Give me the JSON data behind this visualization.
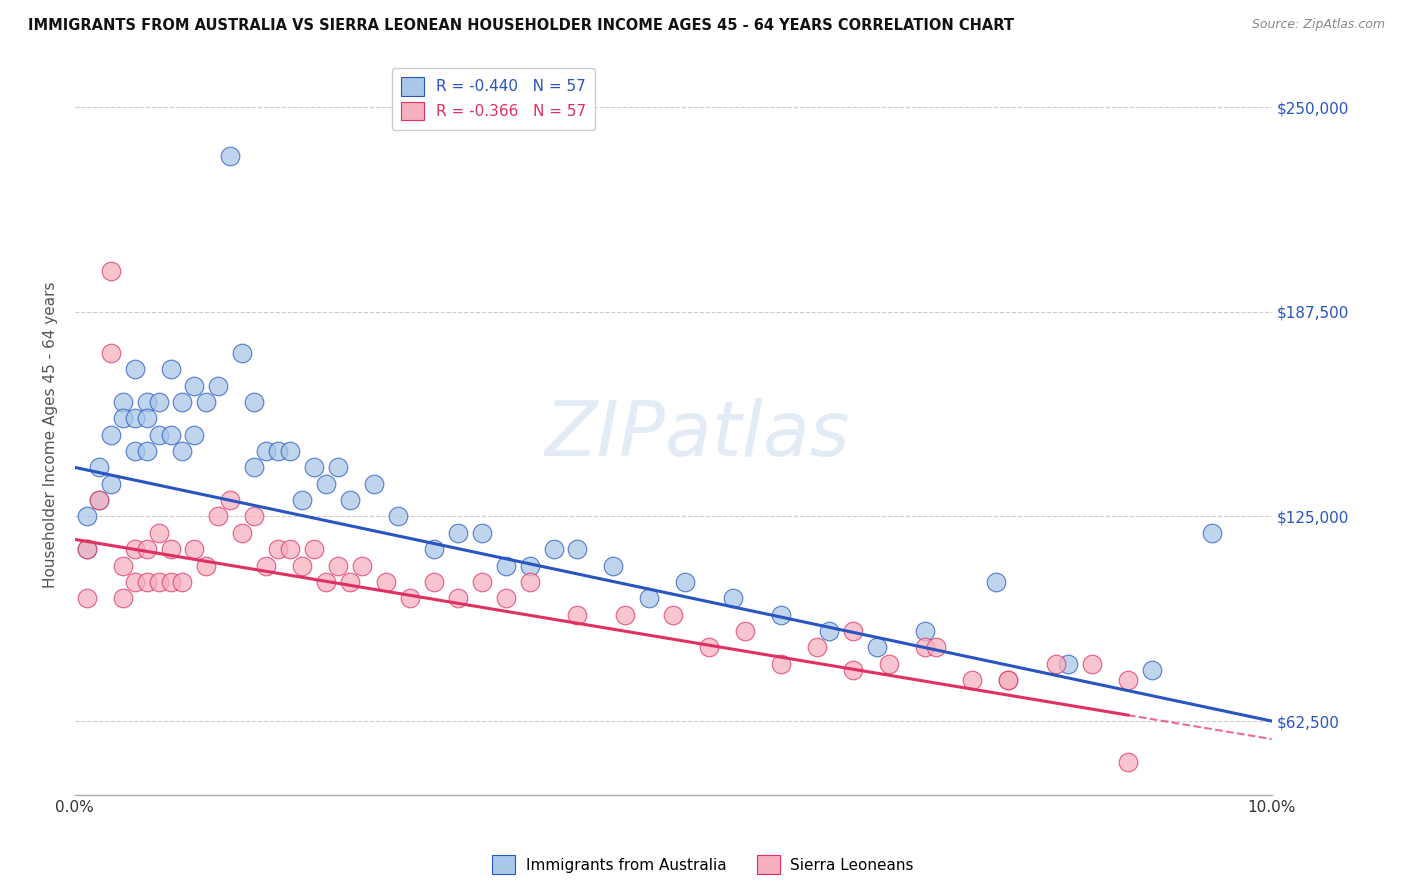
{
  "title": "IMMIGRANTS FROM AUSTRALIA VS SIERRA LEONEAN HOUSEHOLDER INCOME AGES 45 - 64 YEARS CORRELATION CHART",
  "source": "Source: ZipAtlas.com",
  "ylabel": "Householder Income Ages 45 - 64 years",
  "xlim": [
    0.0,
    0.1
  ],
  "ylim": [
    40000,
    260000
  ],
  "yticks": [
    62500,
    125000,
    187500,
    250000
  ],
  "ytick_labels": [
    "$62,500",
    "$125,000",
    "$187,500",
    "$250,000"
  ],
  "xticks": [
    0.0,
    0.02,
    0.04,
    0.06,
    0.08,
    0.1
  ],
  "xtick_labels": [
    "0.0%",
    "",
    "",
    "",
    "",
    "10.0%"
  ],
  "legend1_label": "R = -0.440   N = 57",
  "legend2_label": "R = -0.366   N = 57",
  "bottom_legend1": "Immigrants from Australia",
  "bottom_legend2": "Sierra Leoneans",
  "color_blue": "#a8c8e8",
  "color_pink": "#f5b0c0",
  "line_blue": "#2855c0",
  "line_pink": "#e03060",
  "background": "#ffffff",
  "grid_color": "#cccccc",
  "aus_x": [
    0.001,
    0.001,
    0.002,
    0.002,
    0.003,
    0.003,
    0.004,
    0.004,
    0.005,
    0.005,
    0.005,
    0.006,
    0.006,
    0.006,
    0.007,
    0.007,
    0.008,
    0.008,
    0.009,
    0.009,
    0.01,
    0.01,
    0.011,
    0.012,
    0.013,
    0.014,
    0.015,
    0.015,
    0.016,
    0.017,
    0.018,
    0.019,
    0.02,
    0.021,
    0.022,
    0.023,
    0.025,
    0.027,
    0.03,
    0.032,
    0.034,
    0.036,
    0.038,
    0.04,
    0.042,
    0.045,
    0.048,
    0.051,
    0.055,
    0.059,
    0.063,
    0.067,
    0.071,
    0.077,
    0.083,
    0.09,
    0.095
  ],
  "aus_y": [
    125000,
    115000,
    140000,
    130000,
    150000,
    135000,
    160000,
    155000,
    170000,
    155000,
    145000,
    160000,
    155000,
    145000,
    160000,
    150000,
    170000,
    150000,
    160000,
    145000,
    165000,
    150000,
    160000,
    165000,
    235000,
    175000,
    160000,
    140000,
    145000,
    145000,
    145000,
    130000,
    140000,
    135000,
    140000,
    130000,
    135000,
    125000,
    115000,
    120000,
    120000,
    110000,
    110000,
    115000,
    115000,
    110000,
    100000,
    105000,
    100000,
    95000,
    90000,
    85000,
    90000,
    105000,
    80000,
    78000,
    120000
  ],
  "sl_x": [
    0.001,
    0.001,
    0.002,
    0.003,
    0.003,
    0.004,
    0.004,
    0.005,
    0.005,
    0.006,
    0.006,
    0.007,
    0.007,
    0.008,
    0.008,
    0.009,
    0.01,
    0.011,
    0.012,
    0.013,
    0.014,
    0.015,
    0.016,
    0.017,
    0.018,
    0.019,
    0.02,
    0.021,
    0.022,
    0.023,
    0.024,
    0.026,
    0.028,
    0.03,
    0.032,
    0.034,
    0.036,
    0.038,
    0.042,
    0.046,
    0.05,
    0.053,
    0.056,
    0.059,
    0.062,
    0.065,
    0.068,
    0.071,
    0.075,
    0.078,
    0.082,
    0.085,
    0.088,
    0.078,
    0.065,
    0.072,
    0.088
  ],
  "sl_y": [
    115000,
    100000,
    130000,
    200000,
    175000,
    110000,
    100000,
    115000,
    105000,
    115000,
    105000,
    120000,
    105000,
    105000,
    115000,
    105000,
    115000,
    110000,
    125000,
    130000,
    120000,
    125000,
    110000,
    115000,
    115000,
    110000,
    115000,
    105000,
    110000,
    105000,
    110000,
    105000,
    100000,
    105000,
    100000,
    105000,
    100000,
    105000,
    95000,
    95000,
    95000,
    85000,
    90000,
    80000,
    85000,
    90000,
    80000,
    85000,
    75000,
    75000,
    80000,
    80000,
    75000,
    75000,
    78000,
    85000,
    50000
  ]
}
